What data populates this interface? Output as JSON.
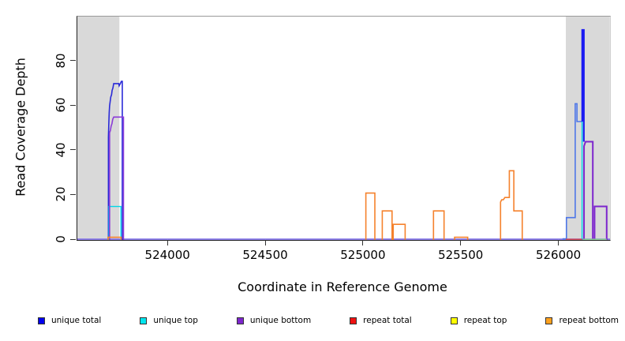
{
  "chart_data": {
    "type": "line",
    "subtype": "step-coverage",
    "title": "",
    "xlabel": "Coordinate in Reference Genome",
    "ylabel": "Read Coverage Depth",
    "xlim": [
      523535,
      526260
    ],
    "ylim": [
      0,
      100
    ],
    "x_ticks": [
      524000,
      524500,
      525000,
      525500,
      526000
    ],
    "y_ticks": [
      0,
      20,
      40,
      60,
      80
    ],
    "grid": false,
    "legend_position": "bottom",
    "shade_color": "#d9d9d9",
    "background_shaded_regions": [
      {
        "start": 523535,
        "end": 523750
      },
      {
        "start": 526034,
        "end": 526259
      }
    ],
    "render_segments": [
      {
        "series": "baseline",
        "color": "#8a7ce8",
        "width": 2,
        "points": [
          [
            523535,
            0.3
          ],
          [
            526260,
            0.3
          ]
        ]
      },
      {
        "series": "unique total",
        "color": "#2a2ad8",
        "width": 1.6,
        "points": [
          [
            523694,
            0
          ],
          [
            523694,
            46
          ],
          [
            523696,
            52
          ],
          [
            523698,
            57
          ],
          [
            523700,
            60
          ],
          [
            523703,
            62
          ],
          [
            523706,
            64
          ],
          [
            523710,
            65
          ],
          [
            523713,
            67
          ],
          [
            523717,
            68
          ],
          [
            523721,
            70
          ],
          [
            523747,
            70
          ],
          [
            523749,
            69
          ],
          [
            523755,
            70
          ],
          [
            523760,
            71
          ],
          [
            523765,
            71
          ],
          [
            523765,
            0
          ]
        ]
      },
      {
        "series": "unique total",
        "color": "#4d76e8",
        "width": 1.6,
        "points": [
          [
            526017,
            0.5
          ],
          [
            526037,
            0.5
          ],
          [
            526037,
            10
          ],
          [
            526082,
            10
          ],
          [
            526082,
            61
          ],
          [
            526091,
            61
          ],
          [
            526091,
            53
          ],
          [
            526118,
            53
          ]
        ]
      },
      {
        "series": "unique total",
        "color": "#1c1cf2",
        "width": 2.2,
        "points": [
          [
            526118,
            53
          ],
          [
            526118,
            94
          ],
          [
            526126,
            94
          ],
          [
            526126,
            44
          ]
        ]
      },
      {
        "series": "unique top",
        "color": "#00d8e8",
        "width": 1.4,
        "points": [
          [
            523697,
            0
          ],
          [
            523697,
            15
          ],
          [
            523758,
            15
          ],
          [
            523758,
            0
          ]
        ]
      },
      {
        "series": "unique top",
        "color": "#00d8e8",
        "width": 1.4,
        "points": [
          [
            526117,
            0
          ],
          [
            526117,
            53
          ]
        ]
      },
      {
        "series": "unique bottom",
        "color": "#8a3ad8",
        "width": 1.6,
        "points": [
          [
            523700,
            0
          ],
          [
            523700,
            48
          ],
          [
            523704,
            49
          ],
          [
            523708,
            51
          ],
          [
            523712,
            52
          ],
          [
            523716,
            54
          ],
          [
            523721,
            55
          ],
          [
            523771,
            55
          ],
          [
            523771,
            0
          ]
        ]
      },
      {
        "series": "unique bottom",
        "color": "#7d26cd",
        "width": 2,
        "points": [
          [
            526127,
            0
          ],
          [
            526127,
            42
          ],
          [
            526131,
            43
          ],
          [
            526135,
            44
          ],
          [
            526172,
            44
          ],
          [
            526172,
            0
          ]
        ]
      },
      {
        "series": "unique bottom",
        "color": "#7d26cd",
        "width": 2,
        "points": [
          [
            526181,
            0
          ],
          [
            526181,
            15
          ],
          [
            526243,
            15
          ],
          [
            526243,
            0
          ]
        ]
      },
      {
        "series": "repeat total",
        "color": "#e04848",
        "width": 1.4,
        "points": [
          [
            526034,
            0.3
          ],
          [
            526118,
            0.3
          ]
        ]
      },
      {
        "series": "baseline-overlap-green",
        "color": "#92de92",
        "width": 1.4,
        "points": [
          [
            526122,
            0.3
          ],
          [
            526243,
            0.3
          ]
        ]
      },
      {
        "series": "repeat bottom",
        "color": "#f5822d",
        "width": 1.6,
        "points": [
          [
            523692,
            0
          ],
          [
            523692,
            1.2
          ],
          [
            523759,
            1.2
          ],
          [
            523759,
            0
          ]
        ]
      },
      {
        "series": "repeat bottom",
        "color": "#f5822d",
        "width": 1.6,
        "points": [
          [
            525011,
            0
          ],
          [
            525011,
            21
          ],
          [
            525057,
            21
          ],
          [
            525057,
            0
          ]
        ]
      },
      {
        "series": "repeat bottom",
        "color": "#f5822d",
        "width": 1.6,
        "points": [
          [
            525095,
            0
          ],
          [
            525095,
            13
          ],
          [
            525145,
            13
          ],
          [
            525145,
            0
          ]
        ]
      },
      {
        "series": "repeat bottom",
        "color": "#f5822d",
        "width": 1.6,
        "points": [
          [
            525151,
            0
          ],
          [
            525151,
            7
          ],
          [
            525212,
            7
          ],
          [
            525212,
            0
          ]
        ]
      },
      {
        "series": "repeat bottom",
        "color": "#f5822d",
        "width": 1.6,
        "points": [
          [
            525357,
            0
          ],
          [
            525357,
            13
          ],
          [
            525411,
            13
          ],
          [
            525411,
            0
          ]
        ]
      },
      {
        "series": "repeat bottom",
        "color": "#f5822d",
        "width": 1.6,
        "points": [
          [
            525465,
            0
          ],
          [
            525465,
            1.2
          ],
          [
            525532,
            1.2
          ],
          [
            525532,
            0
          ]
        ]
      },
      {
        "series": "repeat bottom",
        "color": "#f5822d",
        "width": 1.6,
        "points": [
          [
            525700,
            0
          ],
          [
            525700,
            17
          ],
          [
            525706,
            18
          ],
          [
            525714,
            18
          ],
          [
            525722,
            19
          ],
          [
            525745,
            19
          ],
          [
            525745,
            31
          ],
          [
            525768,
            31
          ],
          [
            525768,
            13
          ],
          [
            525811,
            13
          ],
          [
            525811,
            0
          ]
        ]
      }
    ]
  },
  "legend": {
    "items": [
      {
        "label": "unique total",
        "color": "#0000ee"
      },
      {
        "label": "unique top",
        "color": "#00e5ee"
      },
      {
        "label": "unique bottom",
        "color": "#7d26cd"
      },
      {
        "label": "repeat total",
        "color": "#ee1111"
      },
      {
        "label": "repeat top",
        "color": "#ffff00"
      },
      {
        "label": "repeat bottom",
        "color": "#ffa11e"
      }
    ]
  }
}
